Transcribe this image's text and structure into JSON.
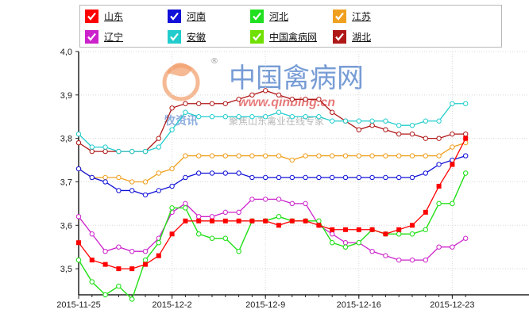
{
  "chart_data": {
    "type": "line",
    "x": [
      "2015-11-25",
      "2015-11-26",
      "2015-11-27",
      "2015-11-28",
      "2015-11-29",
      "2015-11-30",
      "2015-12-01",
      "2015-12-02",
      "2015-12-03",
      "2015-12-04",
      "2015-12-05",
      "2015-12-06",
      "2015-12-07",
      "2015-12-08",
      "2015-12-09",
      "2015-12-10",
      "2015-12-11",
      "2015-12-12",
      "2015-12-13",
      "2015-12-14",
      "2015-12-15",
      "2015-12-16",
      "2015-12-17",
      "2015-12-18",
      "2015-12-19",
      "2015-12-20",
      "2015-12-21",
      "2015-12-22",
      "2015-12-23",
      "2015-12-24"
    ],
    "xticks": [
      "2015-11-25",
      "2015-12-2",
      "2015-12-9",
      "2015-12-16",
      "2015-12-23"
    ],
    "yticks": [
      "3,5",
      "3,6",
      "3,7",
      "3,8",
      "3,9",
      "4,0"
    ],
    "ylim": [
      3.44,
      4.0
    ],
    "series": [
      {
        "name": "山东",
        "color": "#ff0000",
        "marker": "square",
        "values": [
          3.56,
          3.52,
          3.51,
          3.5,
          3.5,
          3.51,
          3.53,
          3.58,
          3.61,
          3.61,
          3.61,
          3.61,
          3.61,
          3.61,
          3.61,
          3.6,
          3.61,
          3.61,
          3.6,
          3.59,
          3.59,
          3.59,
          3.59,
          3.58,
          3.59,
          3.6,
          3.63,
          3.69,
          3.74,
          3.8
        ]
      },
      {
        "name": "河南",
        "color": "#1010d8",
        "marker": "circle",
        "values": [
          3.73,
          3.71,
          3.7,
          3.68,
          3.68,
          3.67,
          3.68,
          3.69,
          3.71,
          3.72,
          3.72,
          3.72,
          3.72,
          3.71,
          3.71,
          3.71,
          3.71,
          3.71,
          3.71,
          3.71,
          3.71,
          3.71,
          3.71,
          3.71,
          3.71,
          3.71,
          3.72,
          3.74,
          3.75,
          3.76
        ]
      },
      {
        "name": "河北",
        "color": "#20e020",
        "marker": "circle",
        "values": [
          3.52,
          3.47,
          3.44,
          3.46,
          3.43,
          3.52,
          3.56,
          3.64,
          3.64,
          3.58,
          3.57,
          3.57,
          3.54,
          3.61,
          3.61,
          3.62,
          3.61,
          3.61,
          3.61,
          3.56,
          3.55,
          3.56,
          3.59,
          3.58,
          3.58,
          3.58,
          3.59,
          3.65,
          3.65,
          3.72
        ]
      },
      {
        "name": "江苏",
        "color": "#f0a020",
        "marker": "circle",
        "values": [
          3.73,
          3.71,
          3.71,
          3.71,
          3.7,
          3.7,
          3.72,
          3.73,
          3.76,
          3.76,
          3.76,
          3.76,
          3.76,
          3.76,
          3.76,
          3.76,
          3.75,
          3.76,
          3.76,
          3.76,
          3.76,
          3.76,
          3.76,
          3.76,
          3.76,
          3.76,
          3.76,
          3.76,
          3.78,
          3.79
        ]
      },
      {
        "name": "辽宁",
        "color": "#cc22cc",
        "marker": "circle",
        "values": [
          3.62,
          3.58,
          3.54,
          3.55,
          3.54,
          3.54,
          3.57,
          3.63,
          3.65,
          3.62,
          3.62,
          3.63,
          3.63,
          3.66,
          3.66,
          3.66,
          3.65,
          3.65,
          3.6,
          3.58,
          3.56,
          3.56,
          3.54,
          3.53,
          3.52,
          3.52,
          3.52,
          3.55,
          3.55,
          3.57
        ]
      },
      {
        "name": "安徽",
        "color": "#22cccc",
        "marker": "circle",
        "values": [
          3.81,
          3.78,
          3.78,
          3.77,
          3.77,
          3.77,
          3.78,
          3.82,
          3.86,
          3.85,
          3.85,
          3.85,
          3.85,
          3.85,
          3.85,
          3.86,
          3.85,
          3.85,
          3.85,
          3.84,
          3.84,
          3.84,
          3.84,
          3.84,
          3.83,
          3.83,
          3.84,
          3.84,
          3.88,
          3.88
        ]
      },
      {
        "name": "中国禽病网",
        "color": "#70e000",
        "marker": "circle",
        "values": [
          3.52,
          3.47,
          3.44,
          3.46,
          3.43,
          3.52,
          3.56,
          3.64,
          3.64,
          3.58,
          3.57,
          3.57,
          3.54,
          3.61,
          3.61,
          3.62,
          3.61,
          3.61,
          3.61,
          3.56,
          3.55,
          3.56,
          3.59,
          3.58,
          3.58,
          3.58,
          3.59,
          3.65,
          3.65,
          3.72
        ]
      },
      {
        "name": "湖北",
        "color": "#b01818",
        "marker": "circle",
        "values": [
          3.79,
          3.77,
          3.77,
          3.77,
          3.77,
          3.77,
          3.8,
          3.87,
          3.88,
          3.88,
          3.88,
          3.88,
          3.89,
          3.9,
          3.91,
          3.9,
          3.89,
          3.89,
          3.89,
          3.86,
          3.84,
          3.82,
          3.83,
          3.82,
          3.81,
          3.81,
          3.8,
          3.8,
          3.81,
          3.81
        ]
      }
    ]
  },
  "watermark": {
    "site_name": "中国禽病网",
    "site_url": "www.qinbing.cn",
    "brand": "牧资讯",
    "slogan": "聚焦山东禽业在线专家",
    "registered": "®"
  }
}
